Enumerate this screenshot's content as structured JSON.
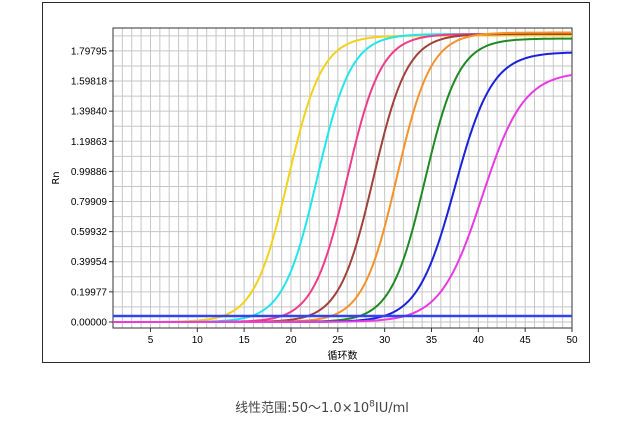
{
  "caption": {
    "prefix": "线性范围:50～1.0×10",
    "exponent": "8",
    "suffix": "IU/ml"
  },
  "chart_data": {
    "type": "line",
    "title": "",
    "xlabel": "循环数",
    "ylabel": "Rn",
    "xlim": [
      1,
      50
    ],
    "ylim": [
      -0.04,
      1.95
    ],
    "x_ticks": [
      5,
      10,
      15,
      20,
      25,
      30,
      35,
      40,
      45,
      50
    ],
    "y_ticks": [
      0.0,
      0.19977,
      0.39954,
      0.59932,
      0.79909,
      0.99886,
      1.19863,
      1.3984,
      1.59818,
      1.79795
    ],
    "y_tick_labels": [
      "0.00000",
      "0.19977",
      "0.39954",
      "0.59932",
      "0.79909",
      "0.99886",
      "1.19863",
      "1.39840",
      "1.59818",
      "1.79795"
    ],
    "grid": true,
    "threshold": {
      "value": 0.04,
      "color": "#3344ee"
    },
    "series": [
      {
        "color": "#f2d21a",
        "midpoint": 19.7,
        "plateau": 1.9,
        "steepness": 0.55
      },
      {
        "color": "#22e6ec",
        "midpoint": 22.8,
        "plateau": 1.91,
        "steepness": 0.55
      },
      {
        "color": "#ee3c8a",
        "midpoint": 26.0,
        "plateau": 1.91,
        "steepness": 0.55
      },
      {
        "color": "#a0413a",
        "midpoint": 28.8,
        "plateau": 1.91,
        "steepness": 0.55
      },
      {
        "color": "#f7922a",
        "midpoint": 31.3,
        "plateau": 1.92,
        "steepness": 0.55
      },
      {
        "color": "#1f8a23",
        "midpoint": 34.3,
        "plateau": 1.88,
        "steepness": 0.55
      },
      {
        "color": "#1a22dc",
        "midpoint": 37.5,
        "plateau": 1.79,
        "steepness": 0.5
      },
      {
        "color": "#e93ae3",
        "midpoint": 40.4,
        "plateau": 1.66,
        "steepness": 0.45
      }
    ]
  }
}
